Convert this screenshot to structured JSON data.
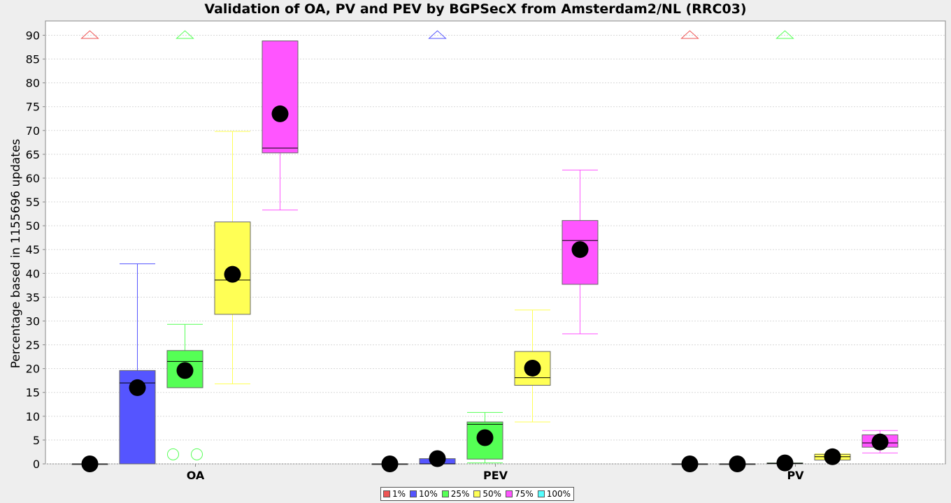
{
  "chart_data": {
    "type": "boxplot",
    "title": "Validation of OA, PV and PEV by BGPSecX from Amsterdam2/NL (RRC03)",
    "ylabel": "Percentage based in 1155696 updates",
    "xlabel": "",
    "ylim": [
      0,
      93
    ],
    "yticks": [
      0,
      5,
      10,
      15,
      20,
      25,
      30,
      35,
      40,
      45,
      50,
      55,
      60,
      65,
      70,
      75,
      80,
      85,
      90
    ],
    "grid": true,
    "legend_position": "bottom",
    "categories": [
      "OA",
      "PEV",
      "PV"
    ],
    "series": [
      {
        "name": "1%",
        "color": "#ee5555"
      },
      {
        "name": "10%",
        "color": "#5555ff"
      },
      {
        "name": "25%",
        "color": "#55ff55"
      },
      {
        "name": "50%",
        "color": "#ffff55"
      },
      {
        "name": "75%",
        "color": "#ff55ff"
      },
      {
        "name": "100%",
        "color": "#55ffff"
      }
    ],
    "boxes": [
      {
        "category": "OA",
        "series": "1%",
        "min": 0,
        "q1": 0,
        "median": 0,
        "q3": 0,
        "max": 0,
        "mean": 0,
        "outliers": [],
        "far_outlier_above": true
      },
      {
        "category": "OA",
        "series": "10%",
        "min": 0,
        "q1": 0,
        "median": 17,
        "q3": 19.6,
        "max": 42,
        "mean": 16,
        "outliers": [],
        "far_outlier_above": false
      },
      {
        "category": "OA",
        "series": "25%",
        "min": 16,
        "q1": 16,
        "median": 21.5,
        "q3": 23.8,
        "max": 29.3,
        "mean": 19.6,
        "outliers": [
          2,
          2
        ],
        "far_outlier_above": true
      },
      {
        "category": "OA",
        "series": "50%",
        "min": 16.8,
        "q1": 31.4,
        "median": 38.6,
        "q3": 50.8,
        "max": 69.8,
        "mean": 39.8,
        "outliers": [],
        "far_outlier_above": false
      },
      {
        "category": "OA",
        "series": "75%",
        "min": 53.3,
        "q1": 65.3,
        "median": 66.3,
        "q3": 88.8,
        "max": 88.8,
        "mean": 73.5,
        "outliers": [],
        "far_outlier_above": false
      },
      {
        "category": "PEV",
        "series": "1%",
        "min": 0,
        "q1": 0,
        "median": 0,
        "q3": 0,
        "max": 0,
        "mean": 0,
        "outliers": [],
        "far_outlier_above": false
      },
      {
        "category": "PEV",
        "series": "10%",
        "min": 0,
        "q1": 0,
        "median": 0,
        "q3": 1.1,
        "max": 1.1,
        "mean": 1.1,
        "outliers": [],
        "far_outlier_above": true
      },
      {
        "category": "PEV",
        "series": "25%",
        "min": 0.2,
        "q1": 1,
        "median": 8.3,
        "q3": 8.8,
        "max": 10.8,
        "mean": 5.5,
        "outliers": [],
        "far_outlier_above": false
      },
      {
        "category": "PEV",
        "series": "50%",
        "min": 8.8,
        "q1": 16.5,
        "median": 18.1,
        "q3": 23.6,
        "max": 32.3,
        "mean": 20.1,
        "outliers": [],
        "far_outlier_above": false
      },
      {
        "category": "PEV",
        "series": "75%",
        "min": 27.3,
        "q1": 37.7,
        "median": 46.9,
        "q3": 51.1,
        "max": 61.7,
        "mean": 45,
        "outliers": [],
        "far_outlier_above": false
      },
      {
        "category": "PV",
        "series": "1%",
        "min": 0,
        "q1": 0,
        "median": 0,
        "q3": 0,
        "max": 0,
        "mean": 0,
        "outliers": [],
        "far_outlier_above": true
      },
      {
        "category": "PV",
        "series": "10%",
        "min": 0,
        "q1": 0,
        "median": 0,
        "q3": 0,
        "max": 0,
        "mean": 0,
        "outliers": [],
        "far_outlier_above": false
      },
      {
        "category": "PV",
        "series": "25%",
        "min": 0,
        "q1": 0,
        "median": 0.1,
        "q3": 0.2,
        "max": 0.2,
        "mean": 0.2,
        "outliers": [],
        "far_outlier_above": true
      },
      {
        "category": "PV",
        "series": "50%",
        "min": 0.8,
        "q1": 0.8,
        "median": 1.5,
        "q3": 2,
        "max": 2.1,
        "mean": 1.5,
        "outliers": [],
        "far_outlier_above": false
      },
      {
        "category": "PV",
        "series": "75%",
        "min": 2.3,
        "q1": 3.5,
        "median": 4.4,
        "q3": 6.1,
        "max": 7,
        "mean": 4.6,
        "outliers": [],
        "far_outlier_above": false
      }
    ]
  }
}
